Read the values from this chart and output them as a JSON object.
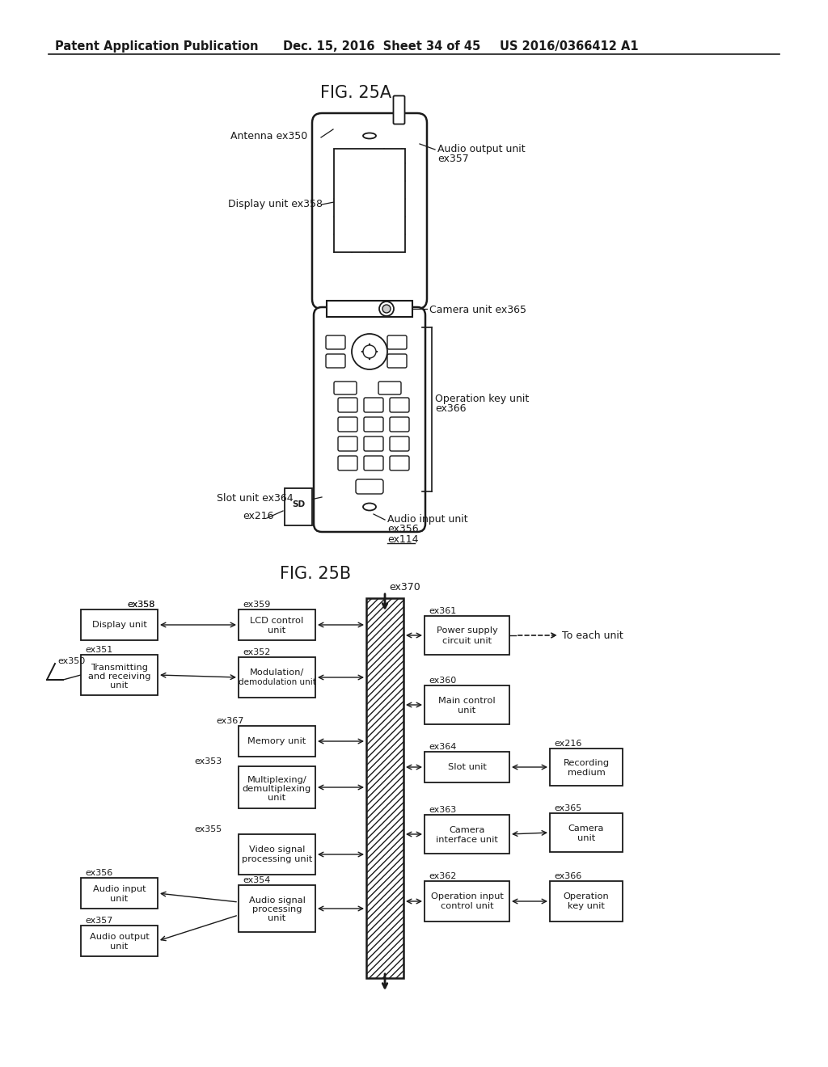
{
  "header_left": "Patent Application Publication",
  "header_mid": "Dec. 15, 2016  Sheet 34 of 45",
  "header_right": "US 2016/0366412 A1",
  "fig25a_title": "FIG. 25A",
  "fig25b_title": "FIG. 25B",
  "bg_color": "#ffffff",
  "line_color": "#1a1a1a",
  "font_color": "#1a1a1a"
}
